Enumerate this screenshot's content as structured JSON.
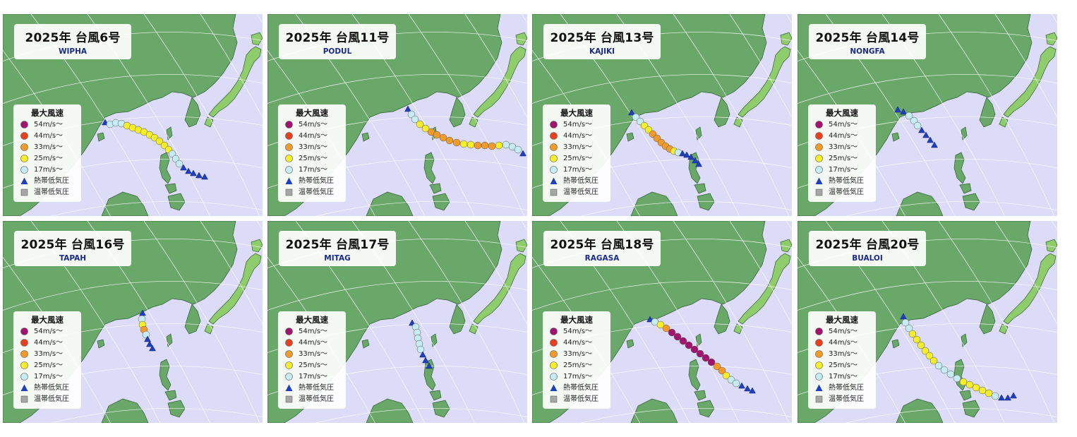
{
  "legend": {
    "title": "最大風速",
    "items": [
      {
        "label": "54m/s〜",
        "shape": "circle",
        "color": "#a0146e"
      },
      {
        "label": "44m/s〜",
        "shape": "circle",
        "color": "#e8401e"
      },
      {
        "label": "33m/s〜",
        "shape": "circle",
        "color": "#f39b2a"
      },
      {
        "label": "25m/s〜",
        "shape": "circle",
        "color": "#f7ee2c"
      },
      {
        "label": "17m/s〜",
        "shape": "circle",
        "color": "#c6ecf6"
      },
      {
        "label": "熱帯低気圧",
        "shape": "triangle",
        "color": "#1f3fbf"
      },
      {
        "label": "温帯低気圧",
        "shape": "square",
        "color": "#a6a6a6"
      }
    ]
  },
  "colors": {
    "ocean": "#dcdcf8",
    "land": "#6aa86a",
    "japan_land": "#8fcc6b",
    "land_border": "#2f5e2f",
    "gridline": "#ffffff",
    "name_text": "#1a2a8c"
  },
  "panels": [
    {
      "id": "wipha",
      "title": "2025年 台風6号",
      "name": "WIPHA",
      "track": [
        {
          "class": "TD",
          "x": 145,
          "y": 154
        },
        {
          "class": "TS",
          "x": 152,
          "y": 156
        },
        {
          "class": "TS",
          "x": 160,
          "y": 154
        },
        {
          "class": "TS",
          "x": 168,
          "y": 155
        },
        {
          "class": "STS",
          "x": 176,
          "y": 158
        },
        {
          "class": "STS",
          "x": 184,
          "y": 161
        },
        {
          "class": "STS",
          "x": 192,
          "y": 164
        },
        {
          "class": "STS",
          "x": 200,
          "y": 167
        },
        {
          "class": "STS",
          "x": 208,
          "y": 171
        },
        {
          "class": "STS",
          "x": 215,
          "y": 175
        },
        {
          "class": "STS",
          "x": 222,
          "y": 180
        },
        {
          "class": "STS",
          "x": 229,
          "y": 186
        },
        {
          "class": "STS",
          "x": 235,
          "y": 192
        },
        {
          "class": "TS",
          "x": 240,
          "y": 198
        },
        {
          "class": "TS",
          "x": 245,
          "y": 205
        },
        {
          "class": "TS",
          "x": 250,
          "y": 212
        },
        {
          "class": "TD",
          "x": 256,
          "y": 218
        },
        {
          "class": "TD",
          "x": 263,
          "y": 223
        },
        {
          "class": "TD",
          "x": 270,
          "y": 226
        },
        {
          "class": "TD",
          "x": 278,
          "y": 229
        },
        {
          "class": "TD",
          "x": 286,
          "y": 231
        }
      ]
    },
    {
      "id": "podul",
      "title": "2025年 台風11号",
      "name": "PODUL",
      "track": [
        {
          "class": "TD",
          "x": 199,
          "y": 135
        },
        {
          "class": "TS",
          "x": 204,
          "y": 142
        },
        {
          "class": "TS",
          "x": 209,
          "y": 149
        },
        {
          "class": "STS",
          "x": 216,
          "y": 156
        },
        {
          "class": "STS",
          "x": 224,
          "y": 162
        },
        {
          "class": "TY",
          "x": 232,
          "y": 167
        },
        {
          "class": "TY",
          "x": 240,
          "y": 171
        },
        {
          "class": "TY",
          "x": 249,
          "y": 175
        },
        {
          "class": "TY",
          "x": 258,
          "y": 179
        },
        {
          "class": "TY",
          "x": 268,
          "y": 182
        },
        {
          "class": "STS",
          "x": 278,
          "y": 184
        },
        {
          "class": "STS",
          "x": 288,
          "y": 185
        },
        {
          "class": "TY",
          "x": 298,
          "y": 186
        },
        {
          "class": "TY",
          "x": 308,
          "y": 186
        },
        {
          "class": "TY",
          "x": 318,
          "y": 187
        },
        {
          "class": "STS",
          "x": 328,
          "y": 186
        },
        {
          "class": "TS",
          "x": 338,
          "y": 185
        },
        {
          "class": "TS",
          "x": 347,
          "y": 188
        },
        {
          "class": "TS",
          "x": 355,
          "y": 192
        },
        {
          "class": "TD",
          "x": 362,
          "y": 198
        }
      ]
    },
    {
      "id": "kajiki",
      "title": "2025年 台風13号",
      "name": "KAJIKI",
      "track": [
        {
          "class": "TD",
          "x": 141,
          "y": 140
        },
        {
          "class": "TS",
          "x": 147,
          "y": 146
        },
        {
          "class": "TS",
          "x": 153,
          "y": 152
        },
        {
          "class": "STS",
          "x": 159,
          "y": 158
        },
        {
          "class": "STS",
          "x": 165,
          "y": 164
        },
        {
          "class": "TY",
          "x": 171,
          "y": 170
        },
        {
          "class": "TY",
          "x": 177,
          "y": 176
        },
        {
          "class": "TY",
          "x": 183,
          "y": 182
        },
        {
          "class": "TY",
          "x": 189,
          "y": 187
        },
        {
          "class": "TY",
          "x": 195,
          "y": 191
        },
        {
          "class": "STS",
          "x": 201,
          "y": 194
        },
        {
          "class": "TS",
          "x": 207,
          "y": 196
        },
        {
          "class": "TD",
          "x": 213,
          "y": 198
        },
        {
          "class": "TD",
          "x": 219,
          "y": 200
        },
        {
          "class": "TD",
          "x": 225,
          "y": 203
        },
        {
          "class": "TD",
          "x": 231,
          "y": 208
        },
        {
          "class": "TD",
          "x": 236,
          "y": 213
        }
      ]
    },
    {
      "id": "nongfa",
      "title": "2025年 台風14号",
      "name": "NONGFA",
      "track": [
        {
          "class": "TD",
          "x": 142,
          "y": 136
        },
        {
          "class": "TD",
          "x": 150,
          "y": 139
        },
        {
          "class": "TS",
          "x": 158,
          "y": 144
        },
        {
          "class": "TS",
          "x": 165,
          "y": 151
        },
        {
          "class": "TS",
          "x": 170,
          "y": 158
        },
        {
          "class": "TD",
          "x": 176,
          "y": 165
        },
        {
          "class": "TD",
          "x": 182,
          "y": 172
        },
        {
          "class": "TD",
          "x": 188,
          "y": 179
        },
        {
          "class": "TD",
          "x": 194,
          "y": 186
        }
      ]
    },
    {
      "id": "tapah",
      "title": "2025年 台風16号",
      "name": "TAPAH",
      "track": [
        {
          "class": "TD",
          "x": 198,
          "y": 131
        },
        {
          "class": "TS",
          "x": 197,
          "y": 139
        },
        {
          "class": "STS",
          "x": 198,
          "y": 147
        },
        {
          "class": "TY",
          "x": 200,
          "y": 154
        },
        {
          "class": "TS",
          "x": 203,
          "y": 161
        },
        {
          "class": "TD",
          "x": 205,
          "y": 168
        },
        {
          "class": "TD",
          "x": 208,
          "y": 175
        },
        {
          "class": "TD",
          "x": 212,
          "y": 181
        }
      ]
    },
    {
      "id": "mitag",
      "title": "2025年 台風17号",
      "name": "MITAG",
      "track": [
        {
          "class": "TD",
          "x": 205,
          "y": 145
        },
        {
          "class": "TS",
          "x": 210,
          "y": 150
        },
        {
          "class": "TS",
          "x": 212,
          "y": 158
        },
        {
          "class": "TS",
          "x": 213,
          "y": 166
        },
        {
          "class": "TS",
          "x": 215,
          "y": 174
        },
        {
          "class": "TS",
          "x": 217,
          "y": 182
        },
        {
          "class": "TD",
          "x": 220,
          "y": 190
        },
        {
          "class": "TD",
          "x": 224,
          "y": 198
        },
        {
          "class": "TD",
          "x": 229,
          "y": 206
        }
      ]
    },
    {
      "id": "ragasa",
      "title": "2025年 台風18号",
      "name": "RAGASA",
      "track": [
        {
          "class": "TD",
          "x": 167,
          "y": 140
        },
        {
          "class": "TS",
          "x": 174,
          "y": 143
        },
        {
          "class": "STS",
          "x": 182,
          "y": 147
        },
        {
          "class": "TY",
          "x": 190,
          "y": 152
        },
        {
          "class": "VTY",
          "x": 198,
          "y": 158
        },
        {
          "class": "VTY",
          "x": 206,
          "y": 164
        },
        {
          "class": "VTY",
          "x": 214,
          "y": 170
        },
        {
          "class": "VTY",
          "x": 222,
          "y": 176
        },
        {
          "class": "VTY",
          "x": 230,
          "y": 182
        },
        {
          "class": "VTY",
          "x": 238,
          "y": 188
        },
        {
          "class": "VTY",
          "x": 246,
          "y": 194
        },
        {
          "class": "VTY",
          "x": 254,
          "y": 200
        },
        {
          "class": "TY",
          "x": 262,
          "y": 206
        },
        {
          "class": "TY",
          "x": 269,
          "y": 212
        },
        {
          "class": "STS",
          "x": 275,
          "y": 219
        },
        {
          "class": "TS",
          "x": 282,
          "y": 225
        },
        {
          "class": "TS",
          "x": 289,
          "y": 230
        },
        {
          "class": "TD",
          "x": 297,
          "y": 234
        },
        {
          "class": "TD",
          "x": 305,
          "y": 238
        },
        {
          "class": "TD",
          "x": 312,
          "y": 241
        }
      ]
    },
    {
      "id": "bualoi",
      "title": "2025年 台風20号",
      "name": "BUALOI",
      "track": [
        {
          "class": "TD",
          "x": 150,
          "y": 136
        },
        {
          "class": "TS",
          "x": 153,
          "y": 144
        },
        {
          "class": "TS",
          "x": 158,
          "y": 152
        },
        {
          "class": "STS",
          "x": 163,
          "y": 160
        },
        {
          "class": "STS",
          "x": 169,
          "y": 168
        },
        {
          "class": "STS",
          "x": 175,
          "y": 176
        },
        {
          "class": "STS",
          "x": 181,
          "y": 184
        },
        {
          "class": "STS",
          "x": 187,
          "y": 191
        },
        {
          "class": "STS",
          "x": 193,
          "y": 198
        },
        {
          "class": "TS",
          "x": 200,
          "y": 205
        },
        {
          "class": "TS",
          "x": 208,
          "y": 211
        },
        {
          "class": "TS",
          "x": 217,
          "y": 217
        },
        {
          "class": "TS",
          "x": 226,
          "y": 223
        },
        {
          "class": "STS",
          "x": 235,
          "y": 228
        },
        {
          "class": "STS",
          "x": 244,
          "y": 232
        },
        {
          "class": "STS",
          "x": 253,
          "y": 236
        },
        {
          "class": "STS",
          "x": 262,
          "y": 240
        },
        {
          "class": "STS",
          "x": 271,
          "y": 244
        },
        {
          "class": "TS",
          "x": 280,
          "y": 248
        },
        {
          "class": "TD",
          "x": 289,
          "y": 251
        },
        {
          "class": "TD",
          "x": 298,
          "y": 251
        },
        {
          "class": "TD",
          "x": 306,
          "y": 248
        }
      ]
    }
  ]
}
